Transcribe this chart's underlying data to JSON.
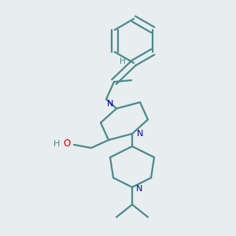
{
  "bg_color": "#e8edf0",
  "bond_color": "#4a8a8a",
  "N_color": "#0000cc",
  "O_color": "#cc0000",
  "H_color": "#4a8a8a",
  "lw": 1.6,
  "figsize": [
    3.0,
    3.0
  ],
  "dpi": 100,
  "xlim": [
    0,
    300
  ],
  "ylim": [
    0,
    300
  ]
}
